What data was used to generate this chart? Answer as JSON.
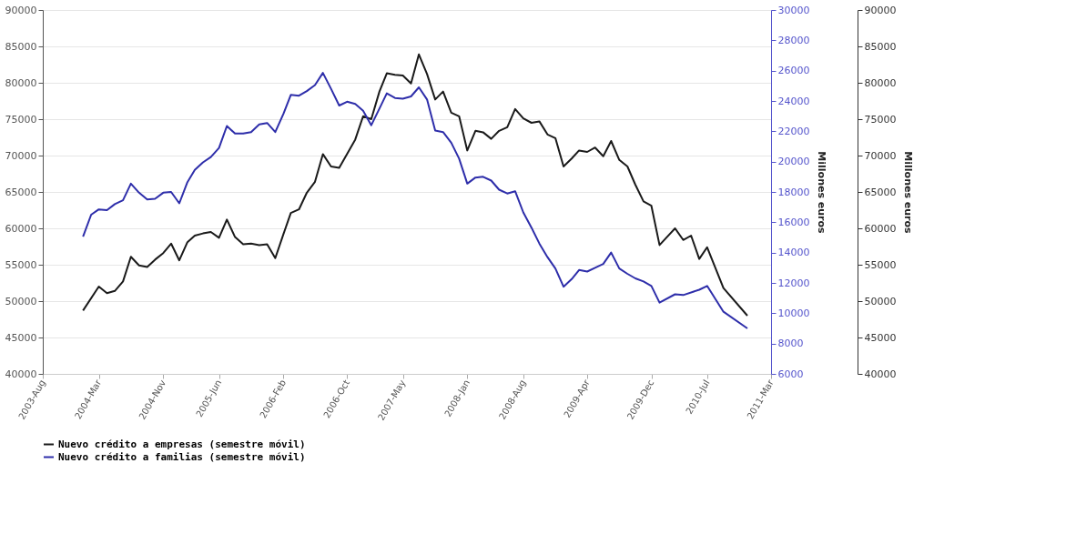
{
  "chart_data": {
    "type": "line",
    "y2label": "Millones euros",
    "y3label": "Millones euros",
    "xlim": [
      "2003-08",
      "2011-03"
    ],
    "xticks": [
      {
        "value": "2003-08",
        "label": "2003-Aug"
      },
      {
        "value": "2004-03",
        "label": "2004-Mar"
      },
      {
        "value": "2004-11",
        "label": "2004-Nov"
      },
      {
        "value": "2005-06",
        "label": "2005-Jun"
      },
      {
        "value": "2006-02",
        "label": "2006-Feb"
      },
      {
        "value": "2006-10",
        "label": "2006-Oct"
      },
      {
        "value": "2007-05",
        "label": "2007-May"
      },
      {
        "value": "2008-01",
        "label": "2008-Jan"
      },
      {
        "value": "2008-08",
        "label": "2008-Aug"
      },
      {
        "value": "2009-04",
        "label": "2009-Apr"
      },
      {
        "value": "2009-12",
        "label": "2009-Dec"
      },
      {
        "value": "2010-07",
        "label": "2010-Jul"
      },
      {
        "value": "2011-03",
        "label": "2011-Mar"
      }
    ],
    "ylim": [
      40000,
      90000
    ],
    "yticks": [
      40000,
      45000,
      50000,
      55000,
      60000,
      65000,
      70000,
      75000,
      80000,
      85000,
      90000
    ],
    "y2lim": [
      40000,
      90000
    ],
    "y2ticks": [
      40000,
      45000,
      50000,
      55000,
      60000,
      65000,
      70000,
      75000,
      80000,
      85000,
      90000
    ],
    "y3lim": [
      6000,
      30000
    ],
    "y3ticks": [
      6000,
      8000,
      10000,
      12000,
      14000,
      16000,
      18000,
      20000,
      22000,
      24000,
      26000,
      28000,
      30000
    ],
    "grid": "y",
    "legend": "bottom",
    "line_style": "solid",
    "marker": "none",
    "series": [
      {
        "name": "Nuevo crédito a empresas (semestre móvil)",
        "color": "#1a1a1a",
        "x": [
          "2004-01",
          "2004-03",
          "2004-04",
          "2004-05",
          "2004-06",
          "2004-07",
          "2004-08",
          "2004-09",
          "2004-10",
          "2004-11",
          "2004-12",
          "2005-01",
          "2005-02",
          "2005-03",
          "2005-04",
          "2005-05",
          "2005-06",
          "2005-07",
          "2005-08",
          "2005-09",
          "2005-10",
          "2005-11",
          "2005-12",
          "2006-01",
          "2006-02",
          "2006-03",
          "2006-04",
          "2006-05",
          "2006-06",
          "2006-07",
          "2006-08",
          "2006-09",
          "2006-11",
          "2006-12",
          "2007-01",
          "2007-02",
          "2007-03",
          "2007-04",
          "2007-05",
          "2007-06",
          "2007-07",
          "2007-08",
          "2007-09",
          "2007-10",
          "2007-11",
          "2007-12",
          "2008-01",
          "2008-02",
          "2008-03",
          "2008-04",
          "2008-05",
          "2008-06",
          "2008-07",
          "2008-08",
          "2008-09",
          "2008-10",
          "2008-11",
          "2008-12",
          "2009-01",
          "2009-02",
          "2009-03",
          "2009-04",
          "2009-05",
          "2009-06",
          "2009-07",
          "2009-08",
          "2009-09",
          "2009-10",
          "2009-11",
          "2009-12",
          "2010-01",
          "2010-03",
          "2010-04",
          "2010-05",
          "2010-06",
          "2010-07",
          "2010-09",
          "2010-12"
        ],
        "values": [
          48700,
          52000,
          51100,
          51400,
          52700,
          56100,
          54900,
          54700,
          55700,
          56600,
          57900,
          55600,
          58100,
          59000,
          59300,
          59500,
          58700,
          61200,
          58800,
          57800,
          57900,
          57700,
          57800,
          55900,
          59200,
          62100,
          62600,
          64900,
          66400,
          70200,
          68500,
          68300,
          72200,
          75400,
          75000,
          78800,
          81300,
          81100,
          81000,
          79900,
          83900,
          81200,
          77700,
          78800,
          75900,
          75400,
          70700,
          73400,
          73200,
          72300,
          73400,
          73900,
          76400,
          75100,
          74500,
          74700,
          72900,
          72400,
          68500,
          69600,
          70700,
          70500,
          71100,
          69900,
          72000,
          69400,
          68500,
          66000,
          63700,
          63100,
          57700,
          60000,
          58400,
          59000,
          55800,
          57400,
          51800,
          48000
        ]
      },
      {
        "name": "Nuevo crédito a familias (semestre móvil)",
        "color": "#2e2eaa",
        "axis": "y3",
        "x": [
          "2004-01",
          "2004-02",
          "2004-03",
          "2004-04",
          "2004-05",
          "2004-06",
          "2004-07",
          "2004-08",
          "2004-09",
          "2004-10",
          "2004-11",
          "2004-12",
          "2005-01",
          "2005-02",
          "2005-03",
          "2005-04",
          "2005-05",
          "2005-06",
          "2005-07",
          "2005-08",
          "2005-09",
          "2005-10",
          "2005-11",
          "2005-12",
          "2006-01",
          "2006-02",
          "2006-03",
          "2006-04",
          "2006-05",
          "2006-06",
          "2006-07",
          "2006-08",
          "2006-09",
          "2006-10",
          "2006-11",
          "2006-12",
          "2007-01",
          "2007-02",
          "2007-03",
          "2007-04",
          "2007-05",
          "2007-06",
          "2007-07",
          "2007-08",
          "2007-09",
          "2007-10",
          "2007-11",
          "2007-12",
          "2008-01",
          "2008-02",
          "2008-03",
          "2008-04",
          "2008-05",
          "2008-06",
          "2008-07",
          "2008-08",
          "2008-09",
          "2008-10",
          "2008-11",
          "2008-12",
          "2009-01",
          "2009-02",
          "2009-03",
          "2009-04",
          "2009-05",
          "2009-06",
          "2009-07",
          "2009-08",
          "2009-09",
          "2009-10",
          "2009-11",
          "2009-12",
          "2010-01",
          "2010-03",
          "2010-04",
          "2010-06",
          "2010-07",
          "2010-09",
          "2010-12"
        ],
        "values": [
          15050,
          16500,
          16850,
          16800,
          17200,
          17450,
          18550,
          17950,
          17500,
          17550,
          17950,
          18000,
          17250,
          18650,
          19450,
          19950,
          20300,
          20900,
          22350,
          21850,
          21850,
          21950,
          22450,
          22550,
          21950,
          23150,
          24400,
          24350,
          24650,
          25050,
          25850,
          24800,
          23700,
          23950,
          23800,
          23350,
          22400,
          23500,
          24500,
          24200,
          24150,
          24300,
          24900,
          24100,
          22050,
          21950,
          21250,
          20200,
          18550,
          18950,
          19000,
          18750,
          18150,
          17900,
          18050,
          16650,
          15650,
          14600,
          13700,
          12950,
          11750,
          12250,
          12850,
          12750,
          13000,
          13250,
          14000,
          12950,
          12600,
          12300,
          12100,
          11800,
          10700,
          11250,
          11200,
          11550,
          11800,
          10100,
          9000
        ]
      }
    ]
  }
}
